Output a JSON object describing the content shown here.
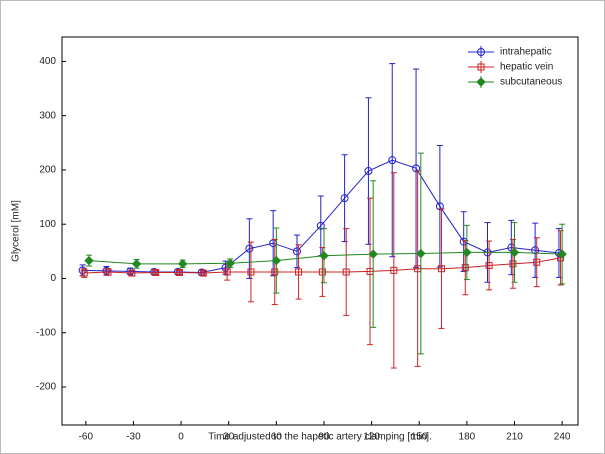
{
  "chart_data": {
    "type": "errorbar-line",
    "xlabel": "Time adjusted to the hapetic artery clamping [min].",
    "ylabel": "Glycerol [mM]",
    "xlim": [
      -75,
      250
    ],
    "ylim": [
      -270,
      445
    ],
    "xticks": [
      -60,
      -30,
      0,
      30,
      60,
      90,
      120,
      150,
      180,
      210,
      240
    ],
    "yticks": [
      -200,
      -100,
      0,
      100,
      200,
      300,
      400
    ],
    "legend": "top-right",
    "series": [
      {
        "name": "intrahepatic",
        "color": "#2222cc",
        "marker": "circle",
        "x": [
          -62,
          -47,
          -32,
          -17,
          -2,
          13,
          28,
          43,
          58,
          73,
          88,
          103,
          118,
          133,
          148,
          163,
          178,
          193,
          208,
          223,
          238
        ],
        "values": [
          15,
          14,
          13,
          12,
          12,
          11,
          20,
          55,
          65,
          50,
          97,
          148,
          198,
          218,
          203,
          133,
          68,
          48,
          57,
          52,
          47
        ],
        "errors": [
          10,
          8,
          6,
          5,
          5,
          5,
          12,
          55,
          60,
          30,
          55,
          80,
          135,
          178,
          183,
          112,
          55,
          55,
          50,
          50,
          45
        ]
      },
      {
        "name": "hepatic vein",
        "color": "#cc2222",
        "marker": "square",
        "x": [
          -61,
          -46,
          -31,
          -16,
          -1,
          14,
          29,
          44,
          59,
          74,
          89,
          104,
          119,
          134,
          149,
          164,
          179,
          194,
          209,
          224,
          239
        ],
        "values": [
          10,
          12,
          10,
          11,
          11,
          10,
          12,
          12,
          12,
          12,
          12,
          12,
          13,
          15,
          18,
          18,
          20,
          24,
          27,
          30,
          38
        ],
        "errors": [
          8,
          6,
          5,
          4,
          4,
          4,
          15,
          55,
          60,
          50,
          45,
          80,
          135,
          180,
          180,
          110,
          50,
          45,
          45,
          45,
          50
        ]
      },
      {
        "name": "subcutaneous",
        "color": "#228822",
        "marker": "diamond",
        "x": [
          -58,
          -28,
          1,
          31,
          60,
          90,
          121,
          151,
          180,
          210,
          240
        ],
        "values": [
          33,
          27,
          27,
          28,
          33,
          42,
          45,
          46,
          48,
          48,
          45
        ],
        "errors": [
          10,
          8,
          7,
          8,
          60,
          50,
          135,
          185,
          50,
          55,
          55
        ]
      }
    ]
  }
}
